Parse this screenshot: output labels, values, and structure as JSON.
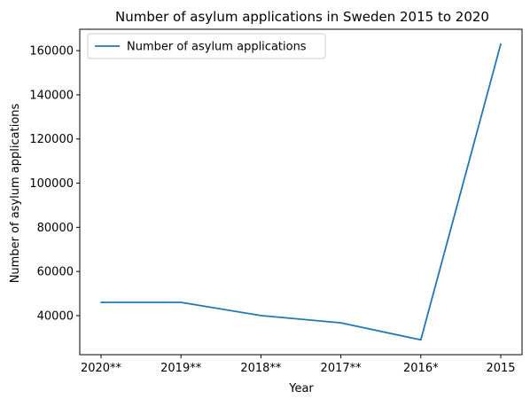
{
  "chart_data": {
    "type": "line",
    "title": "Number of asylum applications in Sweden 2015 to 2020",
    "xlabel": "Year",
    "ylabel": "Number of asylum applications",
    "categories": [
      "2020**",
      "2019**",
      "2018**",
      "2017**",
      "2016*",
      "2015"
    ],
    "series": [
      {
        "name": "Number of asylum applications",
        "values": [
          46000,
          46000,
          40000,
          36700,
          29000,
          163000
        ],
        "color": "#1f77b4"
      }
    ],
    "ylim": [
      22300,
      169700
    ],
    "yticks": [
      40000,
      60000,
      80000,
      100000,
      120000,
      140000,
      160000
    ],
    "grid": false,
    "legend_position": "top-left"
  }
}
